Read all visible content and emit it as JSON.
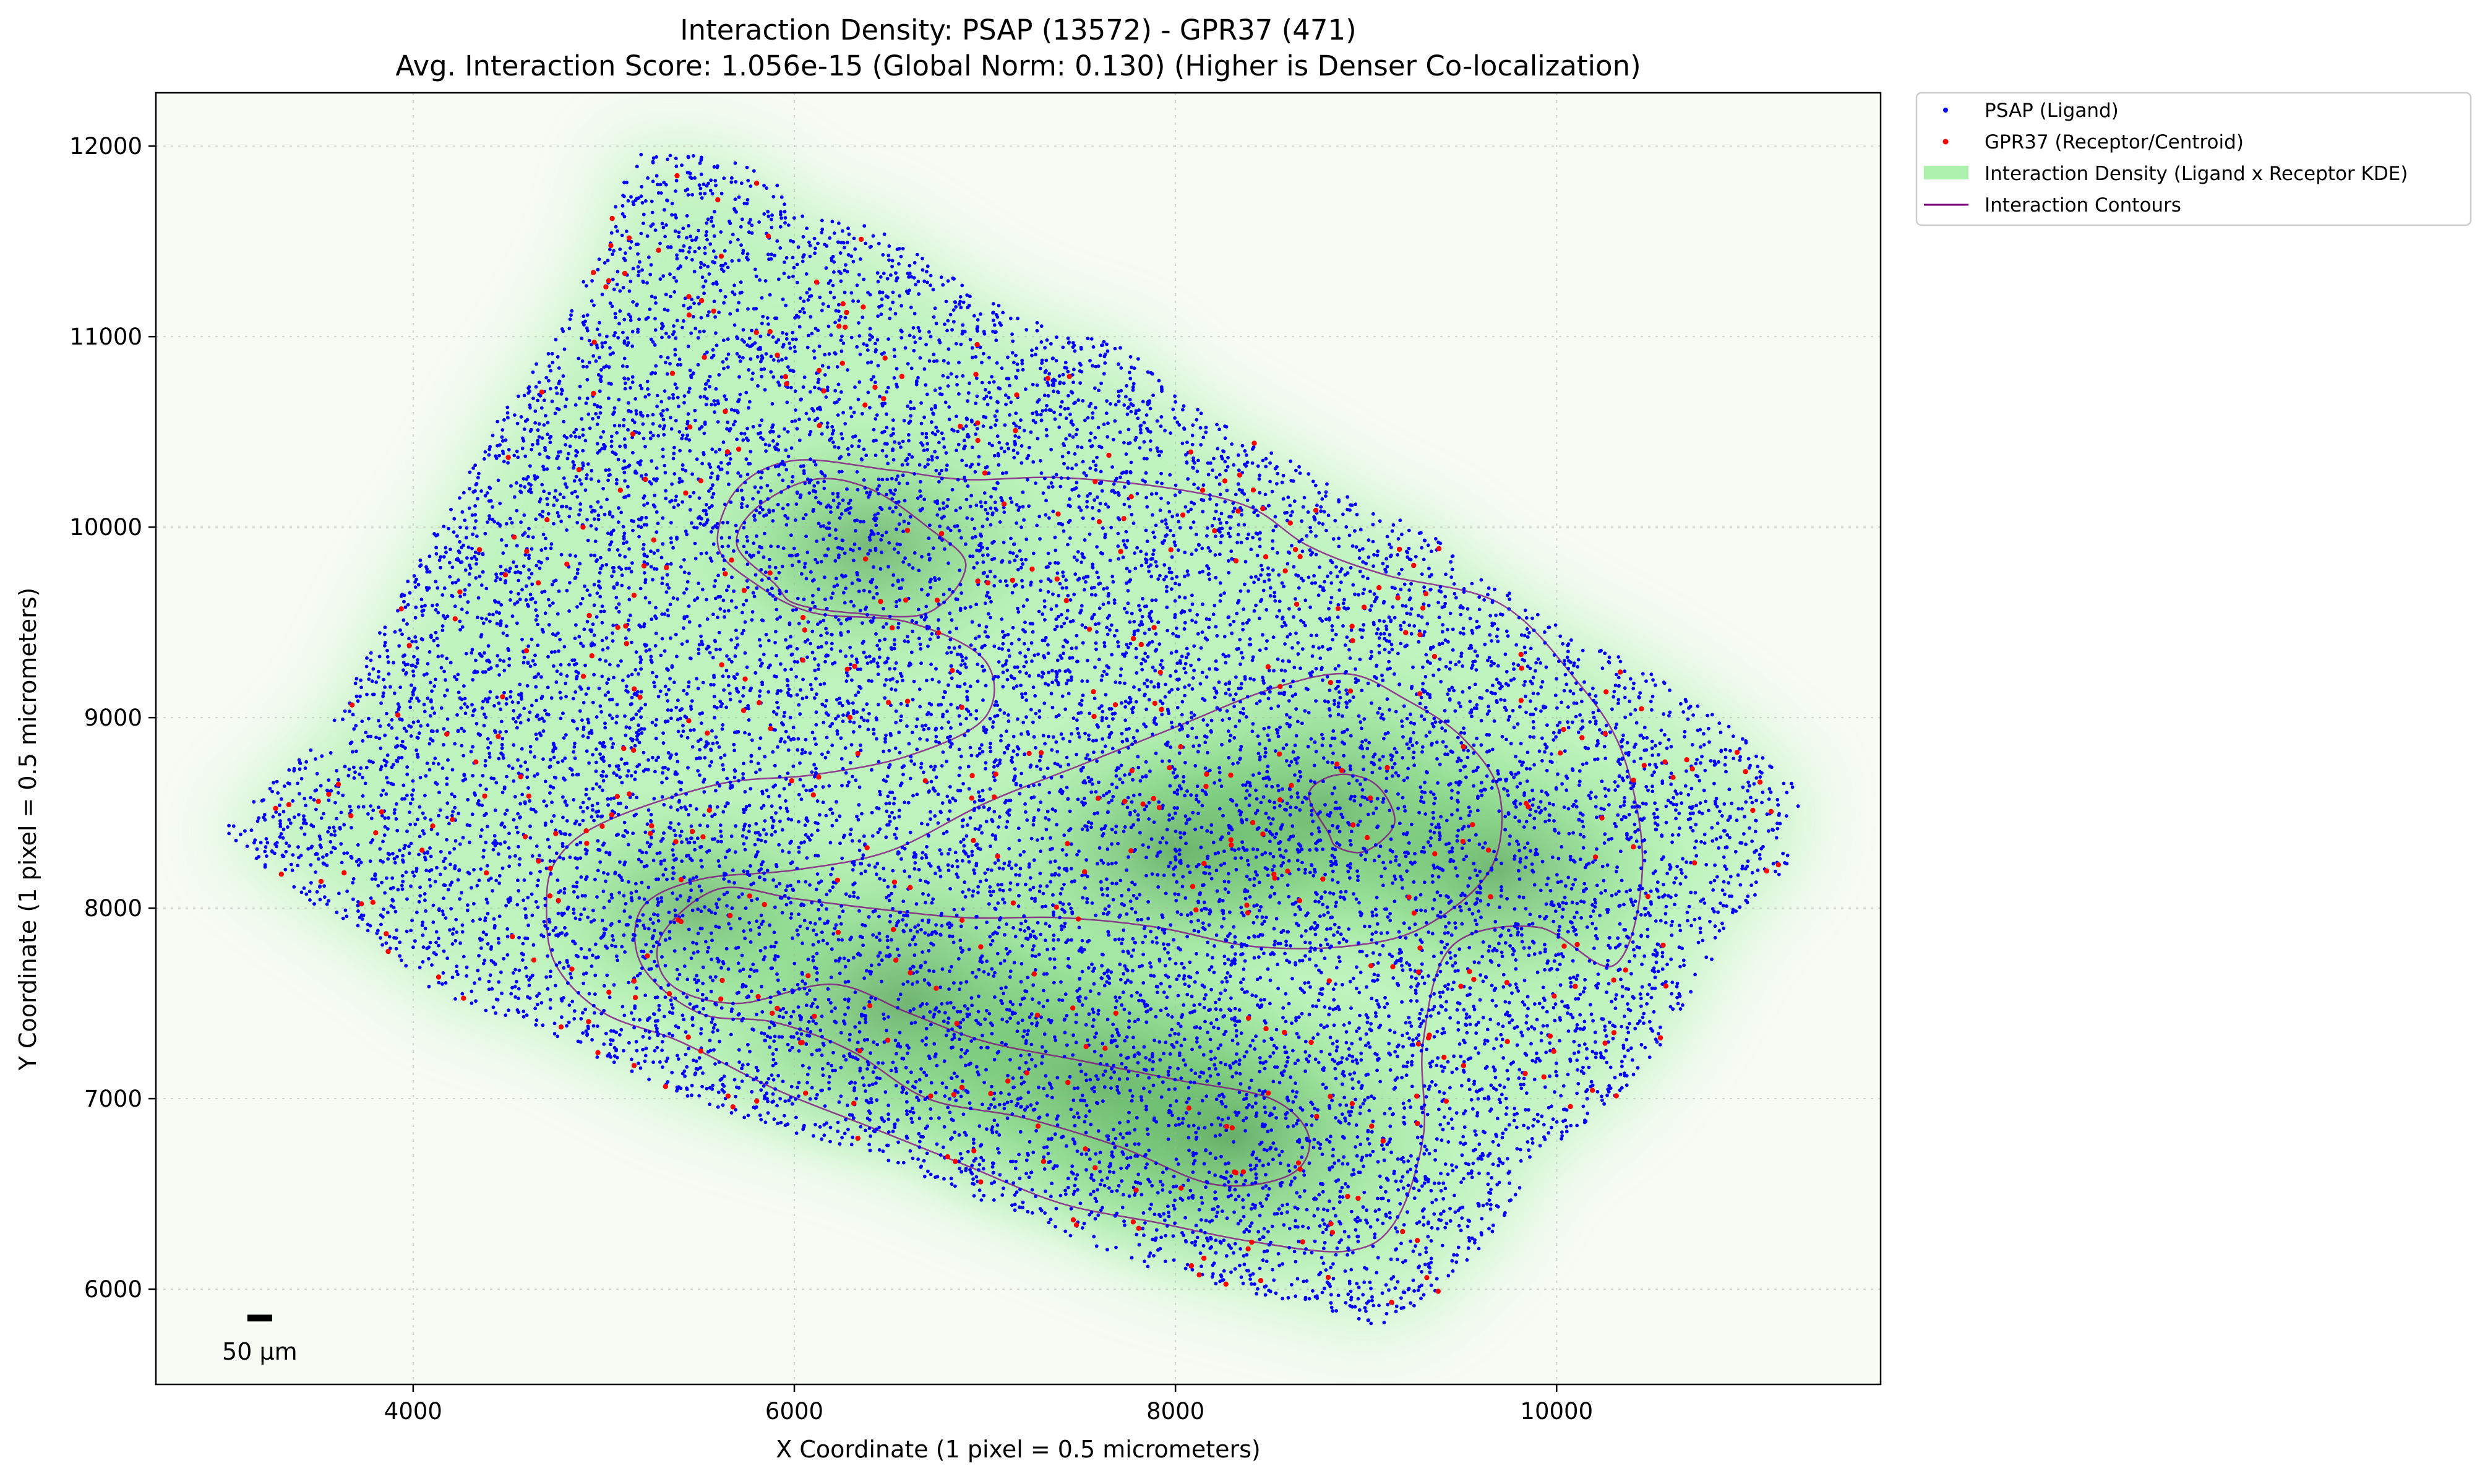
{
  "chart_data": {
    "type": "scatter",
    "title": "Interaction Density: PSAP (13572) - GPR37 (471)",
    "subtitle": "Avg. Interaction Score: 1.056e-15 (Global Norm: 0.130) (Higher is Denser Co-localization)",
    "xlabel": "X Coordinate (1 pixel = 0.5 micrometers)",
    "ylabel": "Y Coordinate (1 pixel = 0.5 micrometers)",
    "xlim": [
      2650,
      11700
    ],
    "ylim": [
      5500,
      12280
    ],
    "x_ticks": [
      4000,
      6000,
      8000,
      10000
    ],
    "y_ticks": [
      6000,
      7000,
      8000,
      9000,
      10000,
      11000,
      12000
    ],
    "grid": true,
    "legend_position": "outside-upper-right",
    "colors": {
      "ligand": "#0000ff",
      "receptor": "#ff0000",
      "density": "#90ee90",
      "density_dark": "#2e7d32",
      "contour": "#800080"
    },
    "ligand_count": 13572,
    "receptor_count": 471,
    "tissue_outline": [
      [
        5100,
        11980
      ],
      [
        5350,
        11980
      ],
      [
        5800,
        11900
      ],
      [
        6100,
        11620
      ],
      [
        6400,
        11600
      ],
      [
        6700,
        11400
      ],
      [
        7000,
        11200
      ],
      [
        7400,
        11020
      ],
      [
        7750,
        10950
      ],
      [
        8000,
        10700
      ],
      [
        8400,
        10450
      ],
      [
        8700,
        10300
      ],
      [
        9000,
        10100
      ],
      [
        9300,
        10000
      ],
      [
        9600,
        9750
      ],
      [
        10000,
        9500
      ],
      [
        10400,
        9300
      ],
      [
        10800,
        9050
      ],
      [
        11100,
        8800
      ],
      [
        11300,
        8600
      ],
      [
        11200,
        8200
      ],
      [
        10900,
        7900
      ],
      [
        10700,
        7500
      ],
      [
        10500,
        7200
      ],
      [
        10200,
        6900
      ],
      [
        9900,
        6700
      ],
      [
        9700,
        6300
      ],
      [
        9400,
        6000
      ],
      [
        9100,
        5800
      ],
      [
        8700,
        5900
      ],
      [
        8300,
        6000
      ],
      [
        7900,
        6100
      ],
      [
        7400,
        6300
      ],
      [
        6900,
        6500
      ],
      [
        6400,
        6700
      ],
      [
        5900,
        6850
      ],
      [
        5400,
        7000
      ],
      [
        5000,
        7200
      ],
      [
        4600,
        7400
      ],
      [
        4200,
        7500
      ],
      [
        3800,
        7800
      ],
      [
        3500,
        8000
      ],
      [
        3100,
        8300
      ],
      [
        3000,
        8400
      ],
      [
        3300,
        8700
      ],
      [
        3600,
        9000
      ],
      [
        3800,
        9400
      ],
      [
        4000,
        9800
      ],
      [
        4200,
        10100
      ],
      [
        4400,
        10500
      ],
      [
        4600,
        10800
      ],
      [
        4800,
        11100
      ],
      [
        5000,
        11500
      ]
    ],
    "density_hotspots": [
      {
        "x": 6600,
        "y": 7500,
        "weight": 1.0
      },
      {
        "x": 7600,
        "y": 7100,
        "weight": 0.95
      },
      {
        "x": 8300,
        "y": 6800,
        "weight": 0.9
      },
      {
        "x": 8800,
        "y": 8500,
        "weight": 0.9
      },
      {
        "x": 8000,
        "y": 8300,
        "weight": 0.8
      },
      {
        "x": 6400,
        "y": 9900,
        "weight": 0.7
      },
      {
        "x": 9700,
        "y": 8200,
        "weight": 0.75
      },
      {
        "x": 5500,
        "y": 8000,
        "weight": 0.6
      }
    ],
    "contours": [
      [
        [
          4700,
          8000
        ],
        [
          4750,
          7700
        ],
        [
          5000,
          7450
        ],
        [
          5400,
          7300
        ],
        [
          5900,
          7050
        ],
        [
          6400,
          6850
        ],
        [
          6900,
          6650
        ],
        [
          7400,
          6450
        ],
        [
          7900,
          6350
        ],
        [
          8400,
          6250
        ],
        [
          8900,
          6200
        ],
        [
          9150,
          6350
        ],
        [
          9300,
          6800
        ],
        [
          9300,
          7300
        ],
        [
          9450,
          7800
        ],
        [
          9900,
          7900
        ],
        [
          10300,
          7700
        ],
        [
          10450,
          8200
        ],
        [
          10350,
          8800
        ],
        [
          10100,
          9200
        ],
        [
          9700,
          9600
        ],
        [
          9100,
          9750
        ],
        [
          8700,
          9900
        ],
        [
          8400,
          10100
        ],
        [
          8000,
          10200
        ],
        [
          7400,
          10260
        ],
        [
          6900,
          10250
        ],
        [
          6500,
          10300
        ],
        [
          6000,
          10350
        ],
        [
          5700,
          10200
        ],
        [
          5600,
          9900
        ],
        [
          5800,
          9700
        ],
        [
          6100,
          9550
        ],
        [
          6600,
          9500
        ],
        [
          7000,
          9300
        ],
        [
          7000,
          9000
        ],
        [
          6600,
          8800
        ],
        [
          6100,
          8700
        ],
        [
          5600,
          8650
        ],
        [
          5000,
          8450
        ],
        [
          4750,
          8250
        ]
      ],
      [
        [
          5600,
          8100
        ],
        [
          5300,
          7850
        ],
        [
          5350,
          7600
        ],
        [
          5700,
          7500
        ],
        [
          6200,
          7600
        ],
        [
          6600,
          7450
        ],
        [
          7000,
          7300
        ],
        [
          7500,
          7200
        ],
        [
          8000,
          7100
        ],
        [
          8500,
          7000
        ],
        [
          8700,
          6800
        ],
        [
          8600,
          6600
        ],
        [
          8200,
          6550
        ],
        [
          7700,
          6750
        ],
        [
          7200,
          6900
        ],
        [
          6700,
          7000
        ],
        [
          6300,
          7250
        ],
        [
          5900,
          7400
        ],
        [
          5500,
          7450
        ],
        [
          5200,
          7700
        ],
        [
          5200,
          8000
        ],
        [
          5500,
          8150
        ],
        [
          6000,
          8200
        ],
        [
          6500,
          8300
        ],
        [
          7000,
          8550
        ],
        [
          7500,
          8750
        ],
        [
          8000,
          8950
        ],
        [
          8500,
          9150
        ],
        [
          8900,
          9230
        ],
        [
          9200,
          9100
        ],
        [
          9500,
          8900
        ],
        [
          9700,
          8600
        ],
        [
          9650,
          8200
        ],
        [
          9300,
          7900
        ],
        [
          8900,
          7800
        ],
        [
          8400,
          7800
        ],
        [
          7900,
          7900
        ],
        [
          7400,
          7950
        ],
        [
          6900,
          7950
        ],
        [
          6400,
          8000
        ],
        [
          6000,
          8050
        ]
      ],
      [
        [
          5900,
          9700
        ],
        [
          5700,
          9900
        ],
        [
          5800,
          10100
        ],
        [
          6100,
          10250
        ],
        [
          6400,
          10200
        ],
        [
          6700,
          10000
        ],
        [
          6900,
          9800
        ],
        [
          6700,
          9550
        ],
        [
          6300,
          9550
        ],
        [
          6000,
          9600
        ]
      ],
      [
        [
          8800,
          8400
        ],
        [
          8700,
          8600
        ],
        [
          8850,
          8700
        ],
        [
          9050,
          8650
        ],
        [
          9150,
          8450
        ],
        [
          9000,
          8300
        ],
        [
          8850,
          8320
        ]
      ]
    ],
    "legend": [
      {
        "label": "PSAP (Ligand)",
        "marker": "dot",
        "color": "#0000ff"
      },
      {
        "label": "GPR37 (Receptor/Centroid)",
        "marker": "dot",
        "color": "#ff0000"
      },
      {
        "label": "Interaction Density (Ligand x Receptor KDE)",
        "marker": "patch",
        "color": "#90ee90"
      },
      {
        "label": "Interaction Contours",
        "marker": "line",
        "color": "#800080"
      }
    ],
    "scale_bar": {
      "label": "50 µm",
      "length_data_units": 100
    }
  }
}
